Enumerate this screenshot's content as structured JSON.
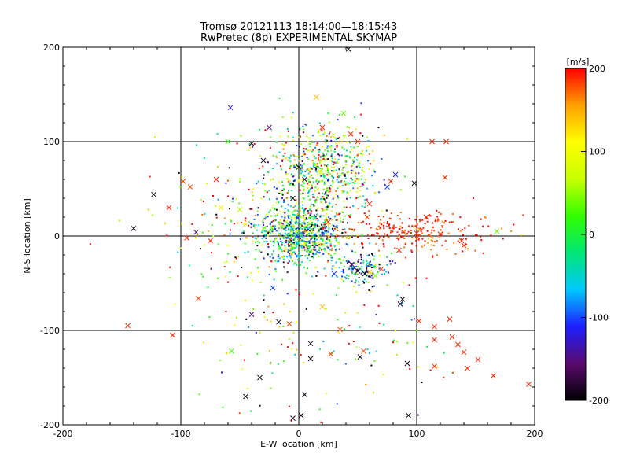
{
  "chart_data": {
    "type": "scatter",
    "title_line1": "Tromsø 20121113 18:14:00—18:15:43",
    "title_line2": "RwPretec (8p) EXPERIMENTAL SKYMAP",
    "xlabel": "E-W location [km]",
    "ylabel": "N-S location [km]",
    "xlim": [
      -200,
      200
    ],
    "ylim": [
      -200,
      200
    ],
    "x_ticks": [
      -200,
      -100,
      0,
      100,
      200
    ],
    "y_ticks": [
      -200,
      -100,
      0,
      100,
      200
    ],
    "x_tick_labels": [
      "-200",
      "-100",
      "0",
      "100",
      "200"
    ],
    "y_tick_labels": [
      "-200",
      "-100",
      "0",
      "100",
      "200"
    ],
    "grid": true,
    "grid_lines_x": [
      -100,
      0,
      100
    ],
    "grid_lines_y": [
      -100,
      0,
      100
    ],
    "colorbar": {
      "label": "[m/s]",
      "range": [
        -200,
        200
      ],
      "ticks": [
        -200,
        -100,
        0,
        100,
        200
      ],
      "tick_labels": [
        "-200",
        "-100",
        "0",
        "100",
        "200"
      ],
      "colors": [
        "#000000",
        "#5a0a6e",
        "#1e1eff",
        "#00c8ff",
        "#00e676",
        "#32ff00",
        "#c8ff00",
        "#ffff00",
        "#ffa000",
        "#ff0000"
      ]
    },
    "series": [
      {
        "name": "velocity (x markers)",
        "marker": "x",
        "points": [
          {
            "x": -140,
            "y": 8,
            "v": -190
          },
          {
            "x": -123,
            "y": 44,
            "v": -190
          },
          {
            "x": -110,
            "y": 30,
            "v": 190
          },
          {
            "x": -98,
            "y": 58,
            "v": 180
          },
          {
            "x": -92,
            "y": 52,
            "v": 180
          },
          {
            "x": -87,
            "y": 4,
            "v": -170
          },
          {
            "x": -95,
            "y": -2,
            "v": 190
          },
          {
            "x": -85,
            "y": -66,
            "v": 180
          },
          {
            "x": -58,
            "y": 136,
            "v": -120
          },
          {
            "x": -57,
            "y": -122,
            "v": 30
          },
          {
            "x": -60,
            "y": 100,
            "v": 20
          },
          {
            "x": -50,
            "y": 28,
            "v": 60
          },
          {
            "x": -45,
            "y": -170,
            "v": -190
          },
          {
            "x": -40,
            "y": -83,
            "v": -150
          },
          {
            "x": -33,
            "y": -150,
            "v": -190
          },
          {
            "x": -25,
            "y": 115,
            "v": -150
          },
          {
            "x": -22,
            "y": -55,
            "v": -100
          },
          {
            "x": -17,
            "y": -91,
            "v": -190
          },
          {
            "x": -8,
            "y": -93,
            "v": 180
          },
          {
            "x": -5,
            "y": -193,
            "v": -190
          },
          {
            "x": 2,
            "y": -190,
            "v": -190
          },
          {
            "x": 5,
            "y": -168,
            "v": -190
          },
          {
            "x": 10,
            "y": -130,
            "v": -190
          },
          {
            "x": 10,
            "y": -114,
            "v": -190
          },
          {
            "x": 15,
            "y": 147,
            "v": 140
          },
          {
            "x": 20,
            "y": 115,
            "v": 190
          },
          {
            "x": 27,
            "y": -125,
            "v": 180
          },
          {
            "x": 35,
            "y": -99,
            "v": 180
          },
          {
            "x": 38,
            "y": 130,
            "v": 40
          },
          {
            "x": 42,
            "y": 198,
            "v": -190
          },
          {
            "x": 44,
            "y": 108,
            "v": 190
          },
          {
            "x": 50,
            "y": 100,
            "v": 190
          },
          {
            "x": 52,
            "y": -128,
            "v": -190
          },
          {
            "x": 55,
            "y": -122,
            "v": 180
          },
          {
            "x": 58,
            "y": 20,
            "v": 180
          },
          {
            "x": 60,
            "y": 34,
            "v": 190
          },
          {
            "x": 75,
            "y": 52,
            "v": -100
          },
          {
            "x": 78,
            "y": 58,
            "v": 190
          },
          {
            "x": 82,
            "y": 65,
            "v": -110
          },
          {
            "x": 85,
            "y": -15,
            "v": 190
          },
          {
            "x": 86,
            "y": -72,
            "v": -190
          },
          {
            "x": 88,
            "y": -67,
            "v": -190
          },
          {
            "x": 92,
            "y": -135,
            "v": -190
          },
          {
            "x": 93,
            "y": -190,
            "v": -190
          },
          {
            "x": 98,
            "y": 56,
            "v": -190
          },
          {
            "x": 100,
            "y": 3,
            "v": 190
          },
          {
            "x": 102,
            "y": -90,
            "v": 190
          },
          {
            "x": 108,
            "y": 20,
            "v": 190
          },
          {
            "x": 113,
            "y": 100,
            "v": 190
          },
          {
            "x": 115,
            "y": -96,
            "v": 190
          },
          {
            "x": 115,
            "y": -110,
            "v": 190
          },
          {
            "x": 115,
            "y": -138,
            "v": 190
          },
          {
            "x": 120,
            "y": 2,
            "v": 190
          },
          {
            "x": 124,
            "y": 62,
            "v": 190
          },
          {
            "x": 125,
            "y": 100,
            "v": 190
          },
          {
            "x": 128,
            "y": -88,
            "v": 190
          },
          {
            "x": 130,
            "y": -107,
            "v": 190
          },
          {
            "x": 135,
            "y": -115,
            "v": 190
          },
          {
            "x": 138,
            "y": -5,
            "v": 190
          },
          {
            "x": 140,
            "y": -10,
            "v": 190
          },
          {
            "x": 140,
            "y": -123,
            "v": 190
          },
          {
            "x": 143,
            "y": -140,
            "v": 190
          },
          {
            "x": 152,
            "y": -131,
            "v": 190
          },
          {
            "x": 165,
            "y": -148,
            "v": 190
          },
          {
            "x": 168,
            "y": 5,
            "v": 40
          },
          {
            "x": 195,
            "y": -157,
            "v": 190
          },
          {
            "x": -145,
            "y": -95,
            "v": 190
          },
          {
            "x": -107,
            "y": -105,
            "v": 190
          },
          {
            "x": -40,
            "y": 98,
            "v": -190
          },
          {
            "x": -30,
            "y": 80,
            "v": -190
          },
          {
            "x": 30,
            "y": -40,
            "v": -100
          },
          {
            "x": 45,
            "y": -30,
            "v": -160
          },
          {
            "x": 50,
            "y": -37,
            "v": -190
          },
          {
            "x": 56,
            "y": -40,
            "v": -190
          },
          {
            "x": 60,
            "y": -38,
            "v": 140
          },
          {
            "x": 65,
            "y": -42,
            "v": 40
          },
          {
            "x": 70,
            "y": -35,
            "v": 180
          },
          {
            "x": 0,
            "y": 73,
            "v": -190
          },
          {
            "x": 5,
            "y": 60,
            "v": -190
          },
          {
            "x": -5,
            "y": 40,
            "v": -190
          },
          {
            "x": -15,
            "y": 10,
            "v": 60
          },
          {
            "x": 25,
            "y": 15,
            "v": 190
          },
          {
            "x": -75,
            "y": -5,
            "v": 190
          },
          {
            "x": -66,
            "y": 30,
            "v": 120
          },
          {
            "x": 20,
            "y": -75,
            "v": 140
          },
          {
            "x": -70,
            "y": 60,
            "v": 190
          }
        ]
      },
      {
        "name": "velocity (dot markers)",
        "marker": "dot",
        "clusters": [
          {
            "cx": 20,
            "cy": 68,
            "sx": 24,
            "sy": 26,
            "n": 650,
            "vmean": 20,
            "vsd": 110
          },
          {
            "cx": 2,
            "cy": 2,
            "sx": 18,
            "sy": 15,
            "n": 700,
            "vmean": -30,
            "vsd": 90
          },
          {
            "cx": 95,
            "cy": 5,
            "sx": 40,
            "sy": 12,
            "n": 260,
            "vmean": 185,
            "vsd": 20
          },
          {
            "cx": 55,
            "cy": -35,
            "sx": 12,
            "sy": 9,
            "n": 140,
            "vmean": -80,
            "vsd": 80
          },
          {
            "cx": -40,
            "cy": 10,
            "sx": 40,
            "sy": 40,
            "n": 180,
            "vmean": 60,
            "vsd": 140
          },
          {
            "cx": 40,
            "cy": -110,
            "sx": 45,
            "sy": 40,
            "n": 90,
            "vmean": 80,
            "vsd": 130
          },
          {
            "cx": -30,
            "cy": -80,
            "sx": 30,
            "sy": 60,
            "n": 80,
            "vmean": 20,
            "vsd": 140
          }
        ]
      }
    ]
  }
}
